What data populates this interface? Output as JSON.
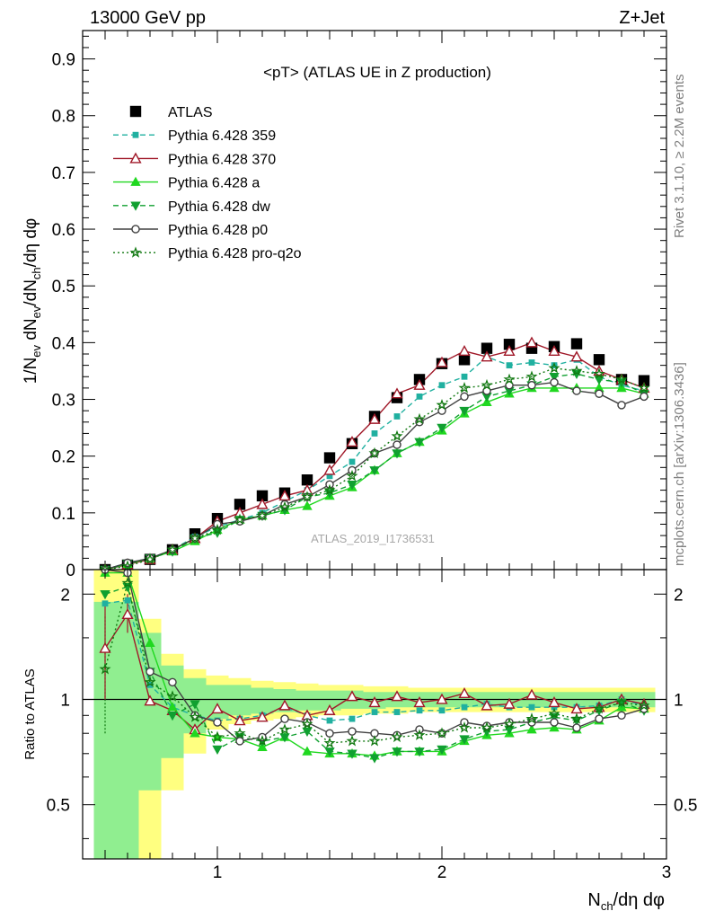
{
  "header": {
    "left": "13000 GeV pp",
    "right": "Z+Jet"
  },
  "side_labels": {
    "rivet": "Rivet 3.1.10, ≥ 2.2M events",
    "mcplots": "mcplots.cern.ch [arXiv:1306.3436]"
  },
  "chart_data": [
    {
      "type": "scatter",
      "title": "<pT> (ATLAS UE in Z production)",
      "watermark": "ATLAS_2019_I1736531",
      "ylabel": "1/N_ev dN_ev/dN_ch/dη dφ",
      "xlim": [
        0.4,
        3.0
      ],
      "ylim": [
        0,
        0.95
      ],
      "yticks": [
        0,
        0.1,
        0.2,
        0.3,
        0.4,
        0.5,
        0.6,
        0.7,
        0.8,
        0.9
      ],
      "ytick_labels": [
        "0",
        "0.1",
        "0.2",
        "0.3",
        "0.4",
        "0.5",
        "0.6",
        "0.7",
        "0.8",
        "0.9"
      ],
      "legend_position": "top-left",
      "x": [
        0.5,
        0.6,
        0.7,
        0.8,
        0.9,
        1.0,
        1.1,
        1.2,
        1.3,
        1.4,
        1.5,
        1.6,
        1.7,
        1.8,
        1.9,
        2.0,
        2.1,
        2.2,
        2.3,
        2.4,
        2.5,
        2.6,
        2.7,
        2.8,
        2.9
      ],
      "series": [
        {
          "name": "ATLAS",
          "color": "#000000",
          "marker": "square",
          "line": "none",
          "values": [
            0.0,
            0.008,
            0.018,
            0.035,
            0.063,
            0.09,
            0.115,
            0.13,
            0.135,
            0.158,
            0.197,
            0.222,
            0.27,
            0.303,
            0.335,
            0.363,
            0.37,
            0.39,
            0.397,
            0.39,
            0.393,
            0.398,
            0.37,
            0.335,
            0.333
          ]
        },
        {
          "name": "Pythia 6.428 359",
          "color": "#20b0a0",
          "marker": "small-square",
          "line": "dashed",
          "values": [
            0.0,
            0.012,
            0.02,
            0.035,
            0.058,
            0.075,
            0.088,
            0.1,
            0.12,
            0.14,
            0.165,
            0.19,
            0.24,
            0.27,
            0.305,
            0.325,
            0.34,
            0.375,
            0.36,
            0.365,
            0.36,
            0.37,
            0.34,
            0.325,
            0.315
          ]
        },
        {
          "name": "Pythia 6.428 370",
          "color": "#a01828",
          "marker": "open-triangle",
          "line": "solid",
          "values": [
            0.0,
            0.009,
            0.018,
            0.035,
            0.055,
            0.085,
            0.1,
            0.115,
            0.13,
            0.14,
            0.175,
            0.225,
            0.265,
            0.31,
            0.325,
            0.365,
            0.385,
            0.375,
            0.385,
            0.4,
            0.385,
            0.375,
            0.35,
            0.335,
            0.32
          ]
        },
        {
          "name": "Pythia 6.428 a",
          "color": "#20d820",
          "marker": "triangle",
          "line": "solid",
          "values": [
            0.0,
            0.01,
            0.02,
            0.032,
            0.05,
            0.07,
            0.088,
            0.095,
            0.105,
            0.112,
            0.13,
            0.145,
            0.175,
            0.205,
            0.225,
            0.245,
            0.275,
            0.295,
            0.31,
            0.32,
            0.32,
            0.32,
            0.32,
            0.32,
            0.31
          ]
        },
        {
          "name": "Pythia 6.428 dw",
          "color": "#10a030",
          "marker": "down-triangle",
          "line": "dashed",
          "values": [
            0.0,
            0.01,
            0.02,
            0.032,
            0.055,
            0.065,
            0.088,
            0.095,
            0.105,
            0.128,
            0.135,
            0.15,
            0.175,
            0.205,
            0.225,
            0.25,
            0.28,
            0.305,
            0.315,
            0.325,
            0.34,
            0.345,
            0.335,
            0.33,
            0.31
          ]
        },
        {
          "name": "Pythia 6.428 p0",
          "color": "#404040",
          "marker": "open-circle",
          "line": "solid",
          "values": [
            0.0,
            0.012,
            0.02,
            0.035,
            0.055,
            0.08,
            0.085,
            0.095,
            0.115,
            0.128,
            0.15,
            0.175,
            0.205,
            0.22,
            0.26,
            0.28,
            0.305,
            0.315,
            0.325,
            0.325,
            0.33,
            0.315,
            0.31,
            0.29,
            0.305
          ]
        },
        {
          "name": "Pythia 6.428 pro-q2o",
          "color": "#107810",
          "marker": "star",
          "line": "dotted",
          "values": [
            0.0,
            0.006,
            0.018,
            0.035,
            0.055,
            0.07,
            0.088,
            0.095,
            0.11,
            0.128,
            0.14,
            0.165,
            0.205,
            0.235,
            0.265,
            0.29,
            0.32,
            0.325,
            0.335,
            0.34,
            0.355,
            0.35,
            0.345,
            0.335,
            0.32
          ]
        }
      ]
    },
    {
      "type": "scatter",
      "ylabel": "Ratio to ATLAS",
      "xlabel": "N_ch/dη dφ",
      "xlim": [
        0.4,
        3.0
      ],
      "ylim": [
        0.35,
        2.35
      ],
      "log_y": true,
      "xticks": [
        1,
        2,
        3
      ],
      "xtick_labels": [
        "1",
        "2",
        "3"
      ],
      "yticks": [
        0.5,
        1,
        2
      ],
      "ytick_labels": [
        "0.5",
        "1",
        "2"
      ],
      "x": [
        0.5,
        0.6,
        0.7,
        0.8,
        0.9,
        1.0,
        1.1,
        1.2,
        1.3,
        1.4,
        1.5,
        1.6,
        1.7,
        1.8,
        1.9,
        2.0,
        2.1,
        2.2,
        2.3,
        2.4,
        2.5,
        2.6,
        2.7,
        2.8,
        2.9
      ],
      "band_inner": [
        1.9,
        1.9,
        1.55,
        1.25,
        1.15,
        1.1,
        1.1,
        1.08,
        1.07,
        1.06,
        1.06,
        1.06,
        1.05,
        1.05,
        1.05,
        1.05,
        1.05,
        1.05,
        1.05,
        1.05,
        1.05,
        1.05,
        1.05,
        1.05,
        1.05
      ],
      "band_inner_low": [
        0.35,
        0.35,
        0.55,
        0.68,
        0.8,
        0.88,
        0.9,
        0.91,
        0.92,
        0.93,
        0.93,
        0.94,
        0.94,
        0.95,
        0.95,
        0.95,
        0.95,
        0.95,
        0.95,
        0.95,
        0.95,
        0.95,
        0.95,
        0.95,
        0.95
      ],
      "band_outer": [
        2.35,
        2.35,
        1.7,
        1.35,
        1.22,
        1.17,
        1.15,
        1.13,
        1.12,
        1.11,
        1.1,
        1.1,
        1.09,
        1.09,
        1.08,
        1.08,
        1.08,
        1.08,
        1.08,
        1.08,
        1.08,
        1.08,
        1.08,
        1.08,
        1.08
      ],
      "band_outer_low": [
        0.35,
        0.35,
        0.35,
        0.55,
        0.7,
        0.82,
        0.85,
        0.87,
        0.88,
        0.89,
        0.9,
        0.9,
        0.91,
        0.91,
        0.92,
        0.92,
        0.92,
        0.92,
        0.92,
        0.92,
        0.92,
        0.92,
        0.92,
        0.92,
        0.92
      ],
      "series": [
        {
          "name": "Pythia 6.428 359",
          "color": "#20b0a0",
          "marker": "small-square",
          "line": "dashed",
          "values": [
            1.88,
            1.92,
            1.1,
            0.95,
            0.9,
            0.87,
            0.88,
            0.9,
            0.95,
            0.9,
            0.87,
            0.88,
            0.92,
            0.92,
            0.93,
            0.93,
            0.95,
            0.97,
            0.95,
            0.95,
            0.95,
            0.95,
            0.96,
            1.0,
            0.96
          ]
        },
        {
          "name": "Pythia 6.428 370",
          "color": "#a01828",
          "marker": "open-triangle",
          "line": "solid",
          "values": [
            1.4,
            1.75,
            0.99,
            0.93,
            0.82,
            0.94,
            0.87,
            0.89,
            0.96,
            0.9,
            0.93,
            1.02,
            0.98,
            1.02,
            0.98,
            1.0,
            1.04,
            0.96,
            0.97,
            1.03,
            0.98,
            0.94,
            0.95,
            1.0,
            0.97
          ]
        },
        {
          "name": "Pythia 6.428 a",
          "color": "#20d820",
          "marker": "triangle",
          "line": "solid",
          "values": [
            2.3,
            2.3,
            1.45,
            0.95,
            0.8,
            0.78,
            0.77,
            0.73,
            0.78,
            0.71,
            0.7,
            0.7,
            0.69,
            0.71,
            0.71,
            0.71,
            0.76,
            0.79,
            0.8,
            0.82,
            0.83,
            0.82,
            0.87,
            0.95,
            0.94
          ]
        },
        {
          "name": "Pythia 6.428 dw",
          "color": "#10a030",
          "marker": "down-triangle",
          "line": "dashed",
          "values": [
            2.0,
            2.1,
            1.2,
            0.9,
            0.97,
            0.72,
            0.78,
            0.76,
            0.78,
            0.81,
            0.71,
            0.7,
            0.68,
            0.71,
            0.71,
            0.72,
            0.77,
            0.81,
            0.82,
            0.86,
            0.89,
            0.87,
            0.93,
            0.98,
            0.93
          ]
        },
        {
          "name": "Pythia 6.428 p0",
          "color": "#404040",
          "marker": "open-circle",
          "line": "solid",
          "values": [
            2.35,
            2.3,
            1.2,
            1.12,
            0.9,
            0.86,
            0.76,
            0.78,
            0.88,
            0.86,
            0.8,
            0.81,
            0.8,
            0.79,
            0.82,
            0.8,
            0.86,
            0.84,
            0.86,
            0.86,
            0.86,
            0.83,
            0.88,
            0.9,
            0.94
          ]
        },
        {
          "name": "Pythia 6.428 pro-q2o",
          "color": "#107810",
          "marker": "star",
          "line": "dotted",
          "values": [
            1.22,
            2.15,
            1.12,
            1.02,
            0.89,
            0.78,
            0.8,
            0.76,
            0.82,
            0.85,
            0.75,
            0.76,
            0.76,
            0.78,
            0.79,
            0.8,
            0.83,
            0.83,
            0.85,
            0.88,
            0.91,
            0.88,
            0.94,
            0.98,
            0.96
          ]
        }
      ]
    }
  ]
}
